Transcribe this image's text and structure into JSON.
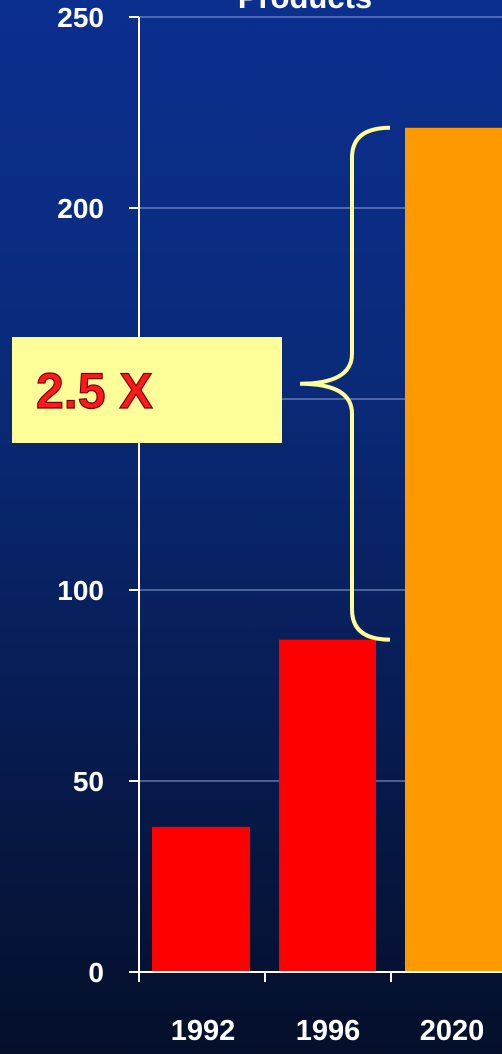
{
  "chart_data": {
    "type": "bar",
    "title": "Products",
    "categories": [
      "1992",
      "1996",
      "2020"
    ],
    "values": [
      38,
      87,
      221
    ],
    "ylim": [
      0,
      250
    ],
    "yticks": [
      0,
      50,
      100,
      200,
      250
    ],
    "grid": true,
    "annotation": {
      "text": "2.5 X",
      "spans": [
        "1996",
        "2020"
      ]
    },
    "colors": {
      "1992": "#ff0000",
      "1996": "#ff0000",
      "2020": "#ff9900",
      "background_top": "#0b2f8f",
      "background_bottom": "#050f2a",
      "callout_box": "#ffff99",
      "brace": "#ffff99"
    }
  }
}
